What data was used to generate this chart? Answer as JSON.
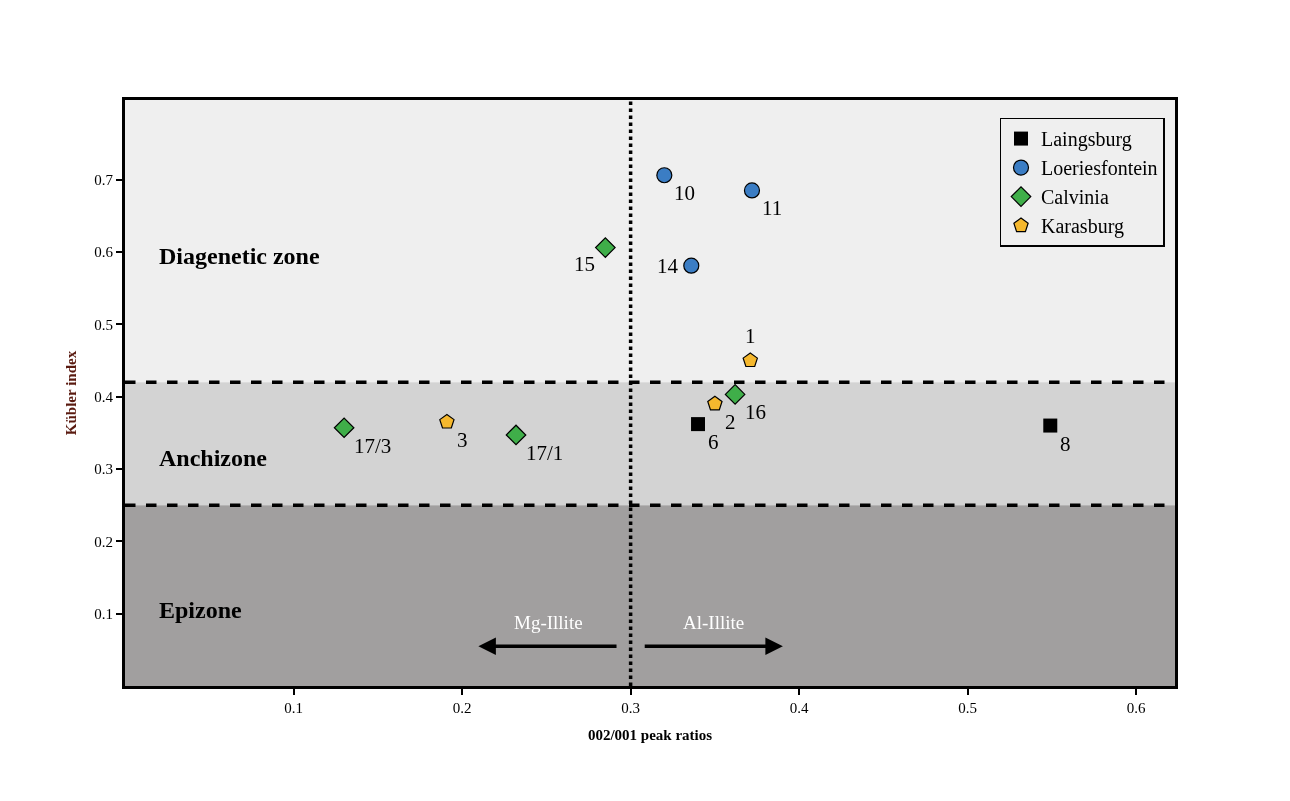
{
  "chart_data": {
    "type": "scatter",
    "xlabel": "002/001 peak ratios",
    "ylabel": "Kübler index",
    "xlim": [
      0,
      0.623
    ],
    "xticks": [
      0.1,
      0.2,
      0.3,
      0.4,
      0.5,
      0.6
    ],
    "ylim": [
      0,
      0.81
    ],
    "yticks": [
      0.1,
      0.2,
      0.3,
      0.4,
      0.5,
      0.6,
      0.7
    ],
    "grid": false,
    "legend": "top right",
    "series": [
      {
        "name": "Laingsburg",
        "color": "#000000",
        "marker": "square",
        "x": [
          0.34,
          0.549
        ],
        "values": [
          0.362,
          0.36
        ]
      },
      {
        "name": "Loeriesfontein",
        "color": "#3b7dc4",
        "marker": "circle",
        "x": [
          0.32,
          0.372,
          0.336
        ],
        "values": [
          0.706,
          0.685,
          0.581
        ]
      },
      {
        "name": "Calvinia",
        "color": "#3fae49",
        "marker": "diamond",
        "x": [
          0.285,
          0.362,
          0.13,
          0.232
        ],
        "values": [
          0.606,
          0.403,
          0.357,
          0.347
        ]
      },
      {
        "name": "Karasburg",
        "color": "#f5b82e",
        "x": [
          0.371,
          0.35,
          0.191
        ],
        "values": [
          0.45,
          0.39,
          0.365
        ]
      }
    ],
    "bands": [
      {
        "axis": "y",
        "from": 0.42,
        "to": 0.81,
        "label": "Diagenetic zone",
        "color": "#efefef"
      },
      {
        "axis": "y",
        "from": 0.25,
        "to": 0.42,
        "label": "Anchizone",
        "color": "#d3d3d3"
      },
      {
        "axis": "y",
        "from": 0,
        "to": 0.25,
        "label": "Epizone",
        "color": "#a19f9f"
      }
    ],
    "ref_lines": [
      {
        "axis": "y",
        "value": 0.42,
        "line_style": "dashed"
      },
      {
        "axis": "y",
        "value": 0.25,
        "line_style": "dashed"
      },
      {
        "axis": "x",
        "value": 0.3,
        "line_style": "dotted"
      }
    ],
    "annotations": [
      {
        "text": "6",
        "x": 0.34,
        "y": 0.362
      },
      {
        "text": "8",
        "x": 0.549,
        "y": 0.36
      },
      {
        "text": "10",
        "x": 0.32,
        "y": 0.706
      },
      {
        "text": "11",
        "x": 0.372,
        "y": 0.685
      },
      {
        "text": "14",
        "x": 0.336,
        "y": 0.581
      },
      {
        "text": "15",
        "x": 0.285,
        "y": 0.606
      },
      {
        "text": "16",
        "x": 0.362,
        "y": 0.403
      },
      {
        "text": "17/3",
        "x": 0.13,
        "y": 0.357
      },
      {
        "text": "17/1",
        "x": 0.232,
        "y": 0.347
      },
      {
        "text": "1",
        "x": 0.371,
        "y": 0.45
      },
      {
        "text": "2",
        "x": 0.35,
        "y": 0.39
      },
      {
        "text": "3",
        "x": 0.191,
        "y": 0.365
      },
      "Mg-Illite",
      "Al-Illite"
    ]
  }
}
